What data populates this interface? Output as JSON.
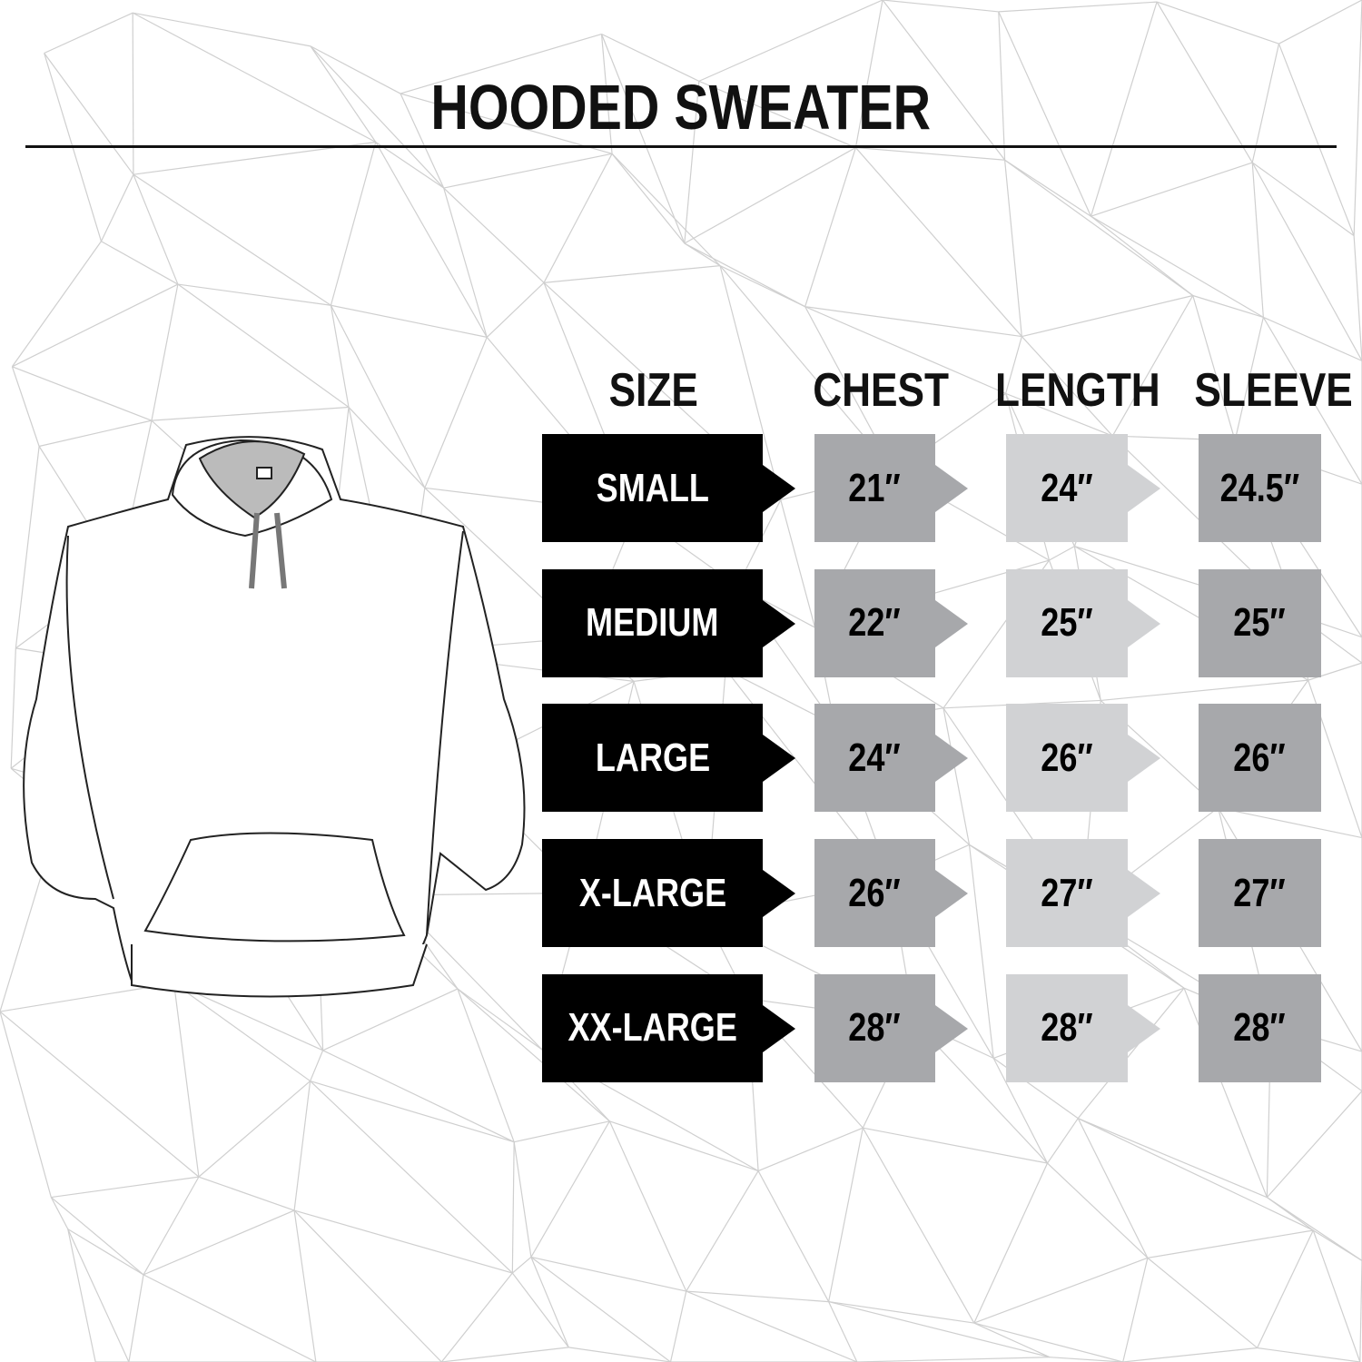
{
  "title": "HOODED SWEATER",
  "headers": {
    "size": "SIZE",
    "chest": "CHEST",
    "length": "LENGTH",
    "sleeve": "SLEEVE"
  },
  "rows": [
    {
      "size": "SMALL",
      "chest": "21″",
      "length": "24″",
      "sleeve": "24.5″"
    },
    {
      "size": "MEDIUM",
      "chest": "22″",
      "length": "25″",
      "sleeve": "25″"
    },
    {
      "size": "LARGE",
      "chest": "24″",
      "length": "26″",
      "sleeve": "26″"
    },
    {
      "size": "X-LARGE",
      "chest": "26″",
      "length": "27″",
      "sleeve": "27″"
    },
    {
      "size": "XX-LARGE",
      "chest": "28″",
      "length": "28″",
      "sleeve": "28″"
    }
  ],
  "colors": {
    "size_bg": "#000000",
    "chest_bg": "#a7a8ab",
    "length_bg": "#d1d2d4",
    "sleeve_bg": "#a7a8ab",
    "pattern": "#cfcfcf"
  }
}
